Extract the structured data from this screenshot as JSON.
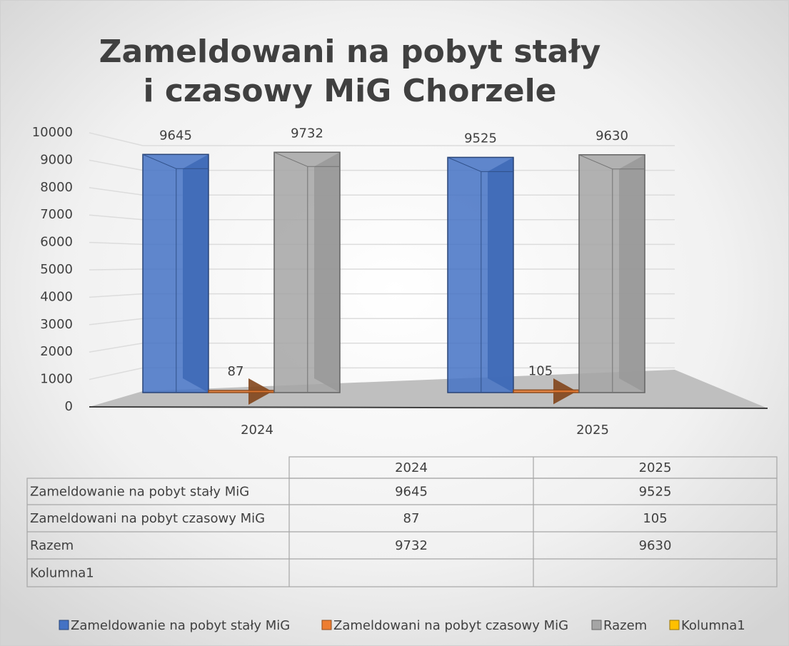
{
  "chart_data": {
    "type": "bar3d",
    "title": [
      "Zameldowani na pobyt stały",
      "i czasowy  MiG Chorzele"
    ],
    "categories": [
      "2024",
      "2025"
    ],
    "series": [
      {
        "name": "Zameldowanie na pobyt stały MiG",
        "color": "#4472c4",
        "values": [
          9645,
          9525
        ]
      },
      {
        "name": "Zameldowani na pobyt czasowy MiG",
        "color": "#ed7d31",
        "values": [
          87,
          105
        ]
      },
      {
        "name": "Razem",
        "color": "#a5a5a5",
        "values": [
          9732,
          9630
        ]
      },
      {
        "name": "Kolumna1",
        "color": "#ffc000",
        "values": [
          null,
          null
        ]
      }
    ],
    "ylim": [
      0,
      10000
    ],
    "yticks": [
      0,
      1000,
      2000,
      3000,
      4000,
      5000,
      6000,
      7000,
      8000,
      9000,
      10000
    ],
    "grid": true,
    "data_table": true,
    "legend": "bottom"
  }
}
